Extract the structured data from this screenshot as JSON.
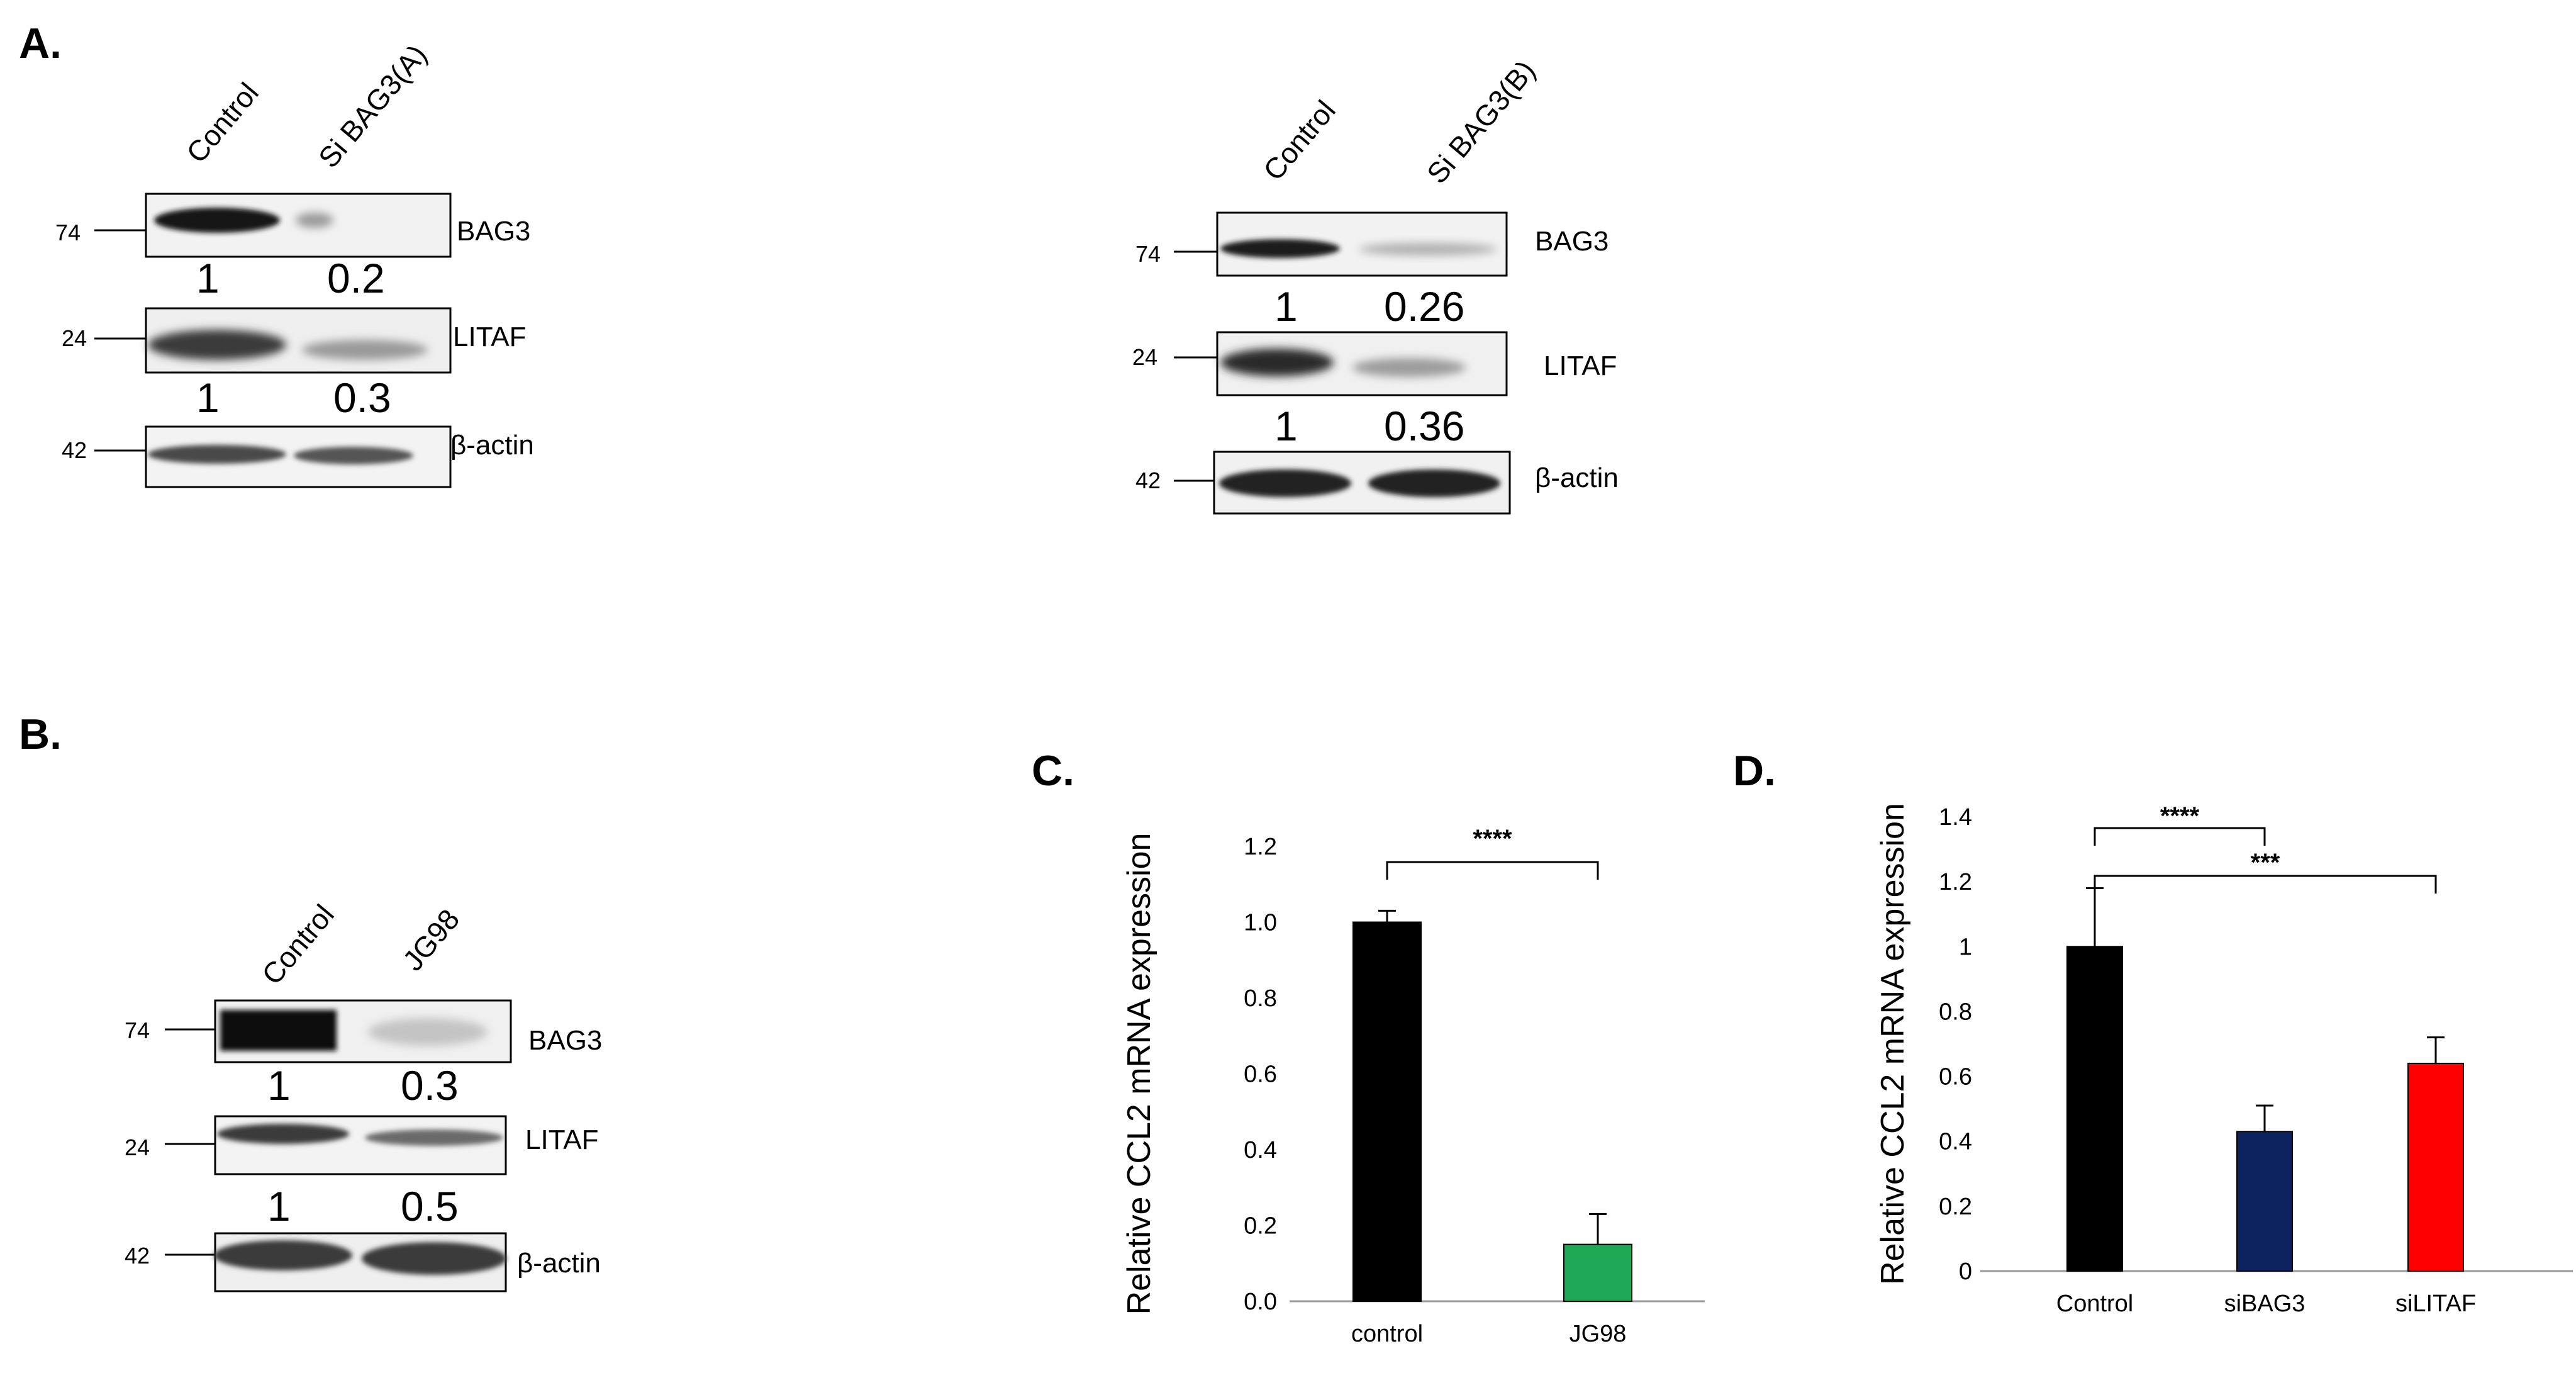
{
  "panels": {
    "A": "A.",
    "B": "B.",
    "C": "C.",
    "D": "D."
  },
  "blot_A_left": {
    "lanes": [
      "Control",
      "Si BAG3(A)"
    ],
    "rows": [
      {
        "protein": "BAG3",
        "mw": "74",
        "quant": [
          "1",
          "0.2"
        ]
      },
      {
        "protein": "LITAF",
        "mw": "24",
        "quant": [
          "1",
          "0.3"
        ]
      },
      {
        "protein": "β-actin",
        "mw": "42",
        "quant": []
      }
    ]
  },
  "blot_A_right": {
    "lanes": [
      "Control",
      "Si BAG3(B)"
    ],
    "rows": [
      {
        "protein": "BAG3",
        "mw": "74",
        "quant": [
          "1",
          "0.26"
        ]
      },
      {
        "protein": "LITAF",
        "mw": "24",
        "quant": [
          "1",
          "0.36"
        ]
      },
      {
        "protein": "β-actin",
        "mw": "42",
        "quant": []
      }
    ]
  },
  "blot_B": {
    "lanes": [
      "Control",
      "JG98"
    ],
    "rows": [
      {
        "protein": "BAG3",
        "mw": "74",
        "quant": [
          "1",
          "0.3"
        ]
      },
      {
        "protein": "LITAF",
        "mw": "24",
        "quant": [
          "1",
          "0.5"
        ]
      },
      {
        "protein": "β-actin",
        "mw": "42",
        "quant": []
      }
    ]
  },
  "chart_data": [
    {
      "panel": "C",
      "type": "bar",
      "categories": [
        "control",
        "JG98"
      ],
      "values": [
        1.0,
        0.15
      ],
      "errors": [
        0.03,
        0.08
      ],
      "colors": [
        "#000000",
        "#1fa855"
      ],
      "ylabel": "Relative CCL2 mRNA expression",
      "ylim": [
        0,
        1.2
      ],
      "yticks": [
        "0.0",
        "0.2",
        "0.4",
        "0.6",
        "0.8",
        "1.0",
        "1.2"
      ],
      "significance": [
        {
          "from": "control",
          "to": "JG98",
          "label": "****"
        }
      ],
      "grid": false
    },
    {
      "panel": "D",
      "type": "bar",
      "categories": [
        "Control",
        "siBAG3",
        "siLITAF"
      ],
      "values": [
        1.0,
        0.43,
        0.64
      ],
      "errors": [
        0.18,
        0.08,
        0.08
      ],
      "colors": [
        "#000000",
        "#0d2360",
        "#ff0000"
      ],
      "ylabel": "Relative CCL2 mRNA expression",
      "ylim": [
        0,
        1.4
      ],
      "yticks": [
        "0",
        "0.2",
        "0.4",
        "0.6",
        "0.8",
        "1",
        "1.2",
        "1.4"
      ],
      "significance": [
        {
          "from": "Control",
          "to": "siBAG3",
          "label": "****"
        },
        {
          "from": "Control",
          "to": "siLITAF",
          "label": "***"
        }
      ],
      "grid": false
    }
  ]
}
